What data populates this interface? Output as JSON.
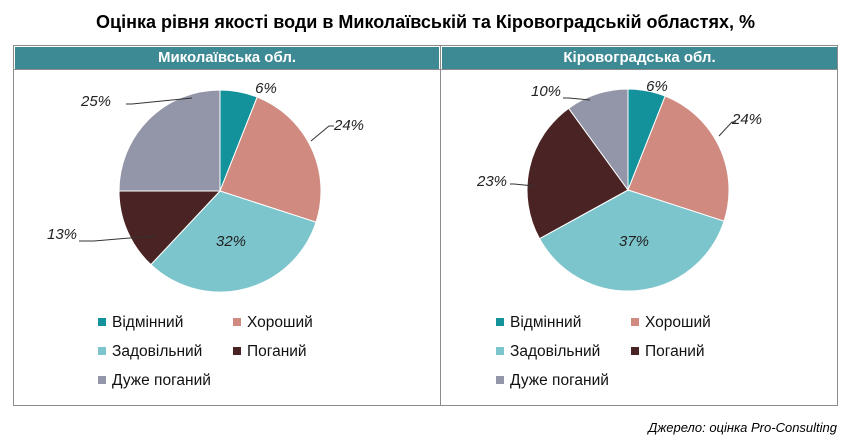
{
  "title": "Оцінка рівня якості води в Миколаївській та Кіровоградській областях, %",
  "source": "Джерело: оцінка Pro-Consulting",
  "colors": {
    "header_bg": "#3e8a94",
    "Відмінний": "#13929b",
    "Хороший": "#d08a80",
    "Задовільний": "#7cc5cc",
    "Поганий": "#4a2424",
    "Дуже поганий": "#9396a8"
  },
  "chart_data": [
    {
      "type": "pie",
      "title": "Миколаївська  обл.",
      "categories": [
        "Відмінний",
        "Хороший",
        "Задовільний",
        "Поганий",
        "Дуже поганий"
      ],
      "values": [
        6,
        24,
        32,
        13,
        25
      ],
      "labels": [
        "6%",
        "24%",
        "32%",
        "13%",
        "25%"
      ],
      "legend": "bottom"
    },
    {
      "type": "pie",
      "title": "Кіровоградська  обл.",
      "categories": [
        "Відмінний",
        "Хороший",
        "Задовільний",
        "Поганий",
        "Дуже поганий"
      ],
      "values": [
        6,
        24,
        37,
        23,
        10
      ],
      "labels": [
        "6%",
        "24%",
        "37%",
        "23%",
        "10%"
      ],
      "legend": "bottom"
    }
  ]
}
